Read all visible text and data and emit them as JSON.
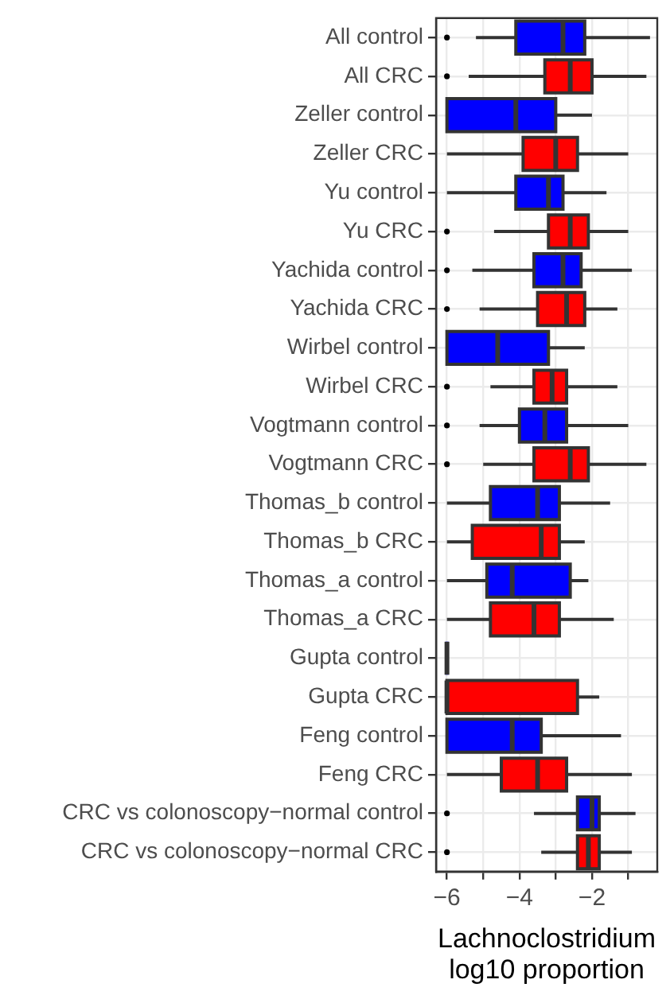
{
  "chart_data": {
    "type": "box",
    "orientation": "horizontal",
    "xlabel": "Lachnoclostridium\nlog10 proportion",
    "categories": [
      "All control",
      "All CRC",
      "Zeller control",
      "Zeller CRC",
      "Yu control",
      "Yu CRC",
      "Yachida control",
      "Yachida CRC",
      "Wirbel control",
      "Wirbel CRC",
      "Vogtmann control",
      "Vogtmann CRC",
      "Thomas_b control",
      "Thomas_b CRC",
      "Thomas_a control",
      "Thomas_a CRC",
      "Gupta control",
      "Gupta CRC",
      "Feng control",
      "Feng CRC",
      "CRC vs colonoscopy−normal control",
      "CRC vs colonoscopy−normal CRC"
    ],
    "colors": [
      "#0000ff",
      "#ff0000",
      "#0000ff",
      "#ff0000",
      "#0000ff",
      "#ff0000",
      "#0000ff",
      "#ff0000",
      "#0000ff",
      "#ff0000",
      "#0000ff",
      "#ff0000",
      "#0000ff",
      "#ff0000",
      "#0000ff",
      "#ff0000",
      "#0000ff",
      "#ff0000",
      "#0000ff",
      "#ff0000",
      "#0000ff",
      "#ff0000"
    ],
    "boxes": [
      {
        "low": -5.2,
        "q1": -4.1,
        "median": -2.8,
        "q3": -2.2,
        "high": -0.4,
        "outliers": [
          -6
        ]
      },
      {
        "low": -5.4,
        "q1": -3.3,
        "median": -2.6,
        "q3": -2.0,
        "high": -0.5,
        "outliers": [
          -6
        ]
      },
      {
        "low": -6,
        "q1": -6,
        "median": -4.1,
        "q3": -3.0,
        "high": -2.0
      },
      {
        "low": -6,
        "q1": -3.9,
        "median": -3.0,
        "q3": -2.4,
        "high": -1.0
      },
      {
        "low": -6,
        "q1": -4.1,
        "median": -3.2,
        "q3": -2.8,
        "high": -1.6
      },
      {
        "low": -4.7,
        "q1": -3.2,
        "median": -2.6,
        "q3": -2.1,
        "high": -1.0,
        "outliers": [
          -6
        ]
      },
      {
        "low": -5.3,
        "q1": -3.6,
        "median": -2.8,
        "q3": -2.3,
        "high": -0.9,
        "outliers": [
          -6
        ]
      },
      {
        "low": -5.1,
        "q1": -3.5,
        "median": -2.7,
        "q3": -2.2,
        "high": -1.3,
        "outliers": [
          -6
        ]
      },
      {
        "low": -6,
        "q1": -6,
        "median": -4.6,
        "q3": -3.2,
        "high": -2.2
      },
      {
        "low": -4.8,
        "q1": -3.6,
        "median": -3.1,
        "q3": -2.7,
        "high": -1.3,
        "outliers": [
          -6
        ]
      },
      {
        "low": -5.1,
        "q1": -4.0,
        "median": -3.3,
        "q3": -2.7,
        "high": -1.0,
        "outliers": [
          -6
        ]
      },
      {
        "low": -5.0,
        "q1": -3.6,
        "median": -2.6,
        "q3": -2.1,
        "high": -0.5,
        "outliers": [
          -6
        ]
      },
      {
        "low": -6,
        "q1": -4.8,
        "median": -3.5,
        "q3": -2.9,
        "high": -1.5
      },
      {
        "low": -6,
        "q1": -5.3,
        "median": -3.4,
        "q3": -2.9,
        "high": -2.2
      },
      {
        "low": -6,
        "q1": -4.9,
        "median": -4.2,
        "q3": -2.6,
        "high": -2.1
      },
      {
        "low": -6,
        "q1": -4.8,
        "median": -3.6,
        "q3": -2.9,
        "high": -1.4
      },
      {
        "low": -6,
        "q1": -6,
        "median": -6,
        "q3": -6,
        "high": -6
      },
      {
        "low": -6,
        "q1": -6,
        "median": -6,
        "q3": -2.4,
        "high": -1.8
      },
      {
        "low": -6,
        "q1": -6,
        "median": -4.2,
        "q3": -3.4,
        "high": -1.2
      },
      {
        "low": -6,
        "q1": -4.5,
        "median": -3.5,
        "q3": -2.7,
        "high": -0.9
      },
      {
        "low": -3.6,
        "q1": -2.4,
        "median": -2.0,
        "q3": -1.8,
        "high": -0.8,
        "outliers": [
          -6
        ]
      },
      {
        "low": -3.4,
        "q1": -2.4,
        "median": -2.1,
        "q3": -1.8,
        "high": -0.9,
        "outliers": [
          -6
        ]
      }
    ],
    "xlim": [
      -6.3,
      -0.2
    ],
    "xticks": [
      -6,
      {
        "value": -5,
        "label": null
      },
      -4,
      {
        "value": -3,
        "label": null
      },
      -2,
      {
        "value": -1,
        "label": null
      }
    ],
    "grid": true
  }
}
